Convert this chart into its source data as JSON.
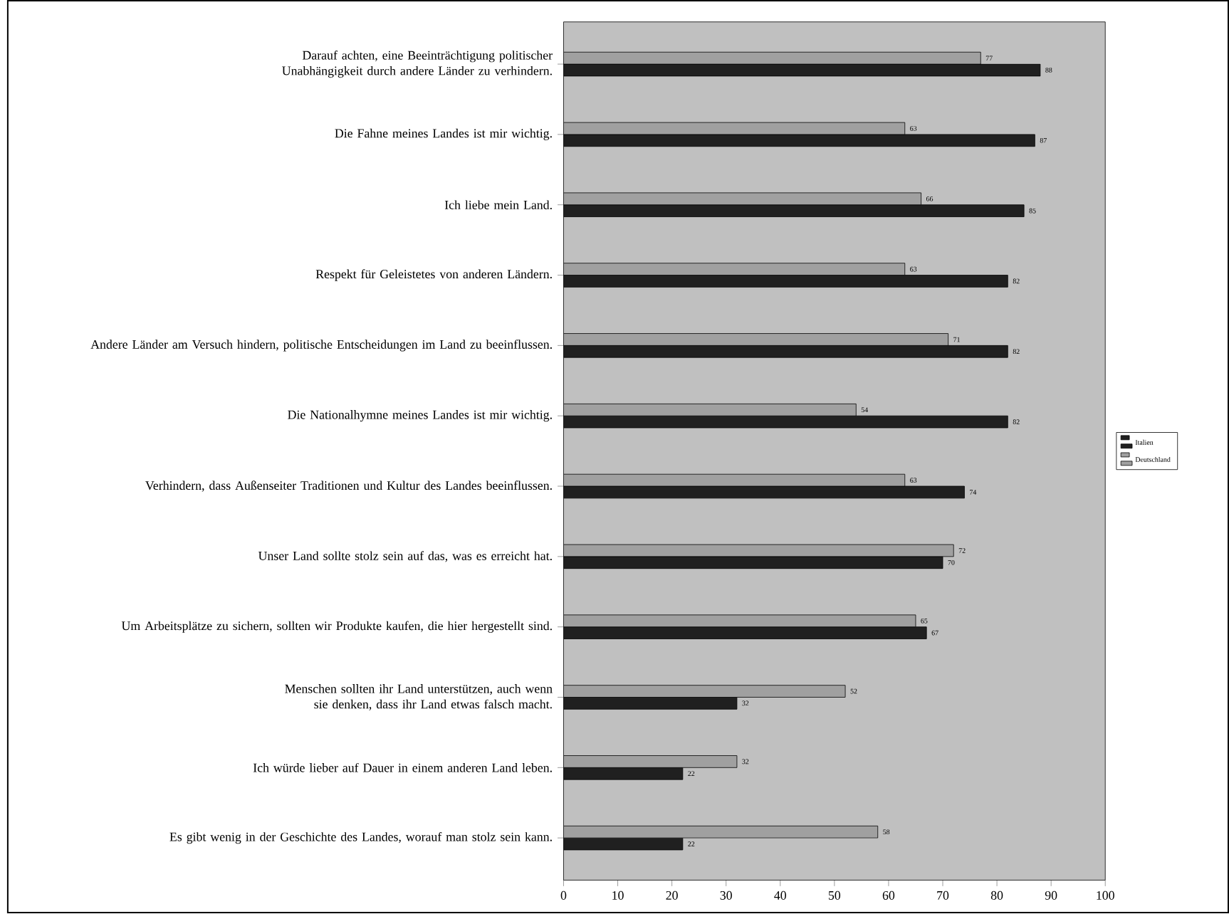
{
  "chart_data": {
    "type": "bar",
    "orientation": "horizontal",
    "categories": [
      "Darauf achten, eine Beeinträchtigung politischer Unabhängigkeit durch andere Länder zu verhindern.",
      "Die Fahne meines Landes ist mir wichtig.",
      "Ich liebe mein Land.",
      "Respekt für Geleistetes von anderen Ländern.",
      "Andere Länder am Versuch hindern, politische Entscheidungen im Land zu beeinflussen.",
      "Die Nationalhymne meines Landes ist mir wichtig.",
      "Verhindern, dass Außenseiter Traditionen und Kultur des Landes beeinflussen.",
      "Unser Land sollte stolz sein auf das, was es erreicht hat.",
      "Um Arbeitsplätze zu sichern, sollten wir Produkte kaufen, die hier hergestellt sind.",
      "Menschen sollten ihr Land unterstützen, auch wenn sie denken, dass ihr Land etwas falsch macht.",
      "Ich würde lieber auf Dauer in einem anderen Land leben.",
      "Es gibt wenig in der Geschichte des Landes, worauf man stolz sein kann."
    ],
    "series": [
      {
        "name": "Italien",
        "color": "#202020",
        "values": [
          88,
          87,
          85,
          82,
          82,
          82,
          74,
          70,
          67,
          32,
          22,
          22
        ]
      },
      {
        "name": "Deutschland",
        "color": "#a0a0a0",
        "values": [
          77,
          63,
          66,
          63,
          71,
          54,
          63,
          72,
          65,
          52,
          32,
          58
        ]
      }
    ],
    "xlim": [
      0,
      100
    ],
    "xticks": [
      0,
      10,
      20,
      30,
      40,
      50,
      60,
      70,
      80,
      90,
      100
    ],
    "data_labels": true,
    "legend": "right",
    "grid": false
  }
}
